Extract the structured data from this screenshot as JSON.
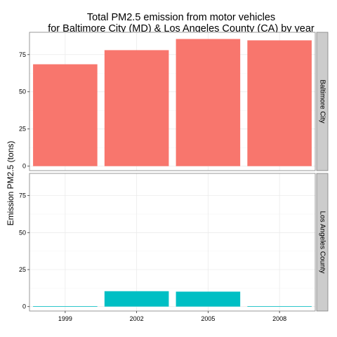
{
  "chart_data": {
    "type": "bar",
    "title": [
      "Total PM2.5 emission from motor vehicles",
      "for Baltimore City (MD) & Los Angeles County (CA) by year"
    ],
    "ylabel": "Emission PM2.5 (tons)",
    "categories": [
      "1999",
      "2002",
      "2005",
      "2008"
    ],
    "yticks": [
      0,
      25,
      50,
      75
    ],
    "ylim": [
      -3,
      90
    ],
    "grid": true,
    "facets": [
      {
        "name": "Baltimore City",
        "color": "#f8766d",
        "values": [
          68.5,
          78,
          85.5,
          84.6
        ]
      },
      {
        "name": "Los Angeles County",
        "color": "#00bfc4",
        "values": [
          0.3,
          10.4,
          10.1,
          0.3
        ]
      }
    ]
  }
}
